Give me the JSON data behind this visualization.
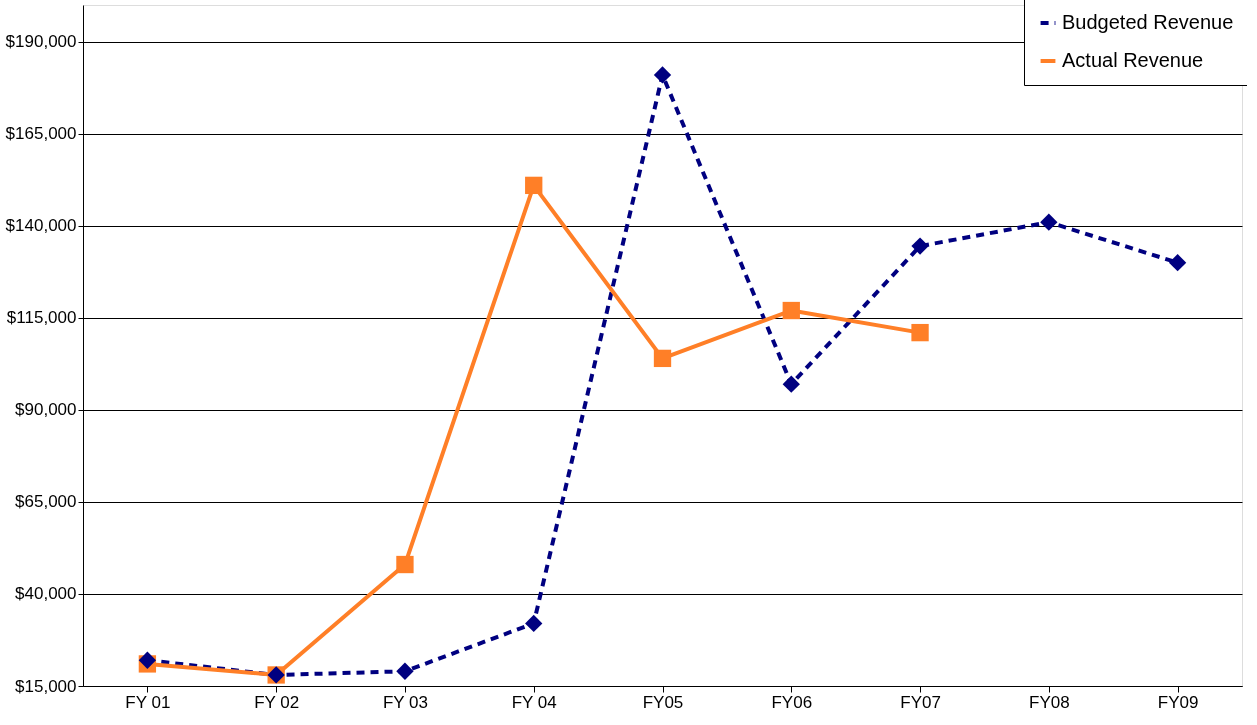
{
  "chart_data": {
    "type": "line",
    "categories": [
      "FY 01",
      "FY 02",
      "FY 03",
      "FY 04",
      "FY05",
      "FY06",
      "FY07",
      "FY08",
      "FY09"
    ],
    "series": [
      {
        "name": "Budgeted Revenue",
        "color": "#000080",
        "marker": "diamond",
        "line_style": "dashed",
        "values": [
          22000,
          18000,
          19000,
          32000,
          181000,
          97000,
          134500,
          141000,
          130000
        ]
      },
      {
        "name": "Actual Revenue",
        "color": "#ff7f27",
        "marker": "square",
        "line_style": "solid",
        "values": [
          21000,
          18000,
          48000,
          151000,
          104000,
          117000,
          111000,
          null,
          null
        ]
      }
    ],
    "ylim": [
      15000,
      200000
    ],
    "yticks": [
      {
        "value": 15000,
        "label": "$15,000"
      },
      {
        "value": 40000,
        "label": "$40,000"
      },
      {
        "value": 65000,
        "label": "$65,000"
      },
      {
        "value": 90000,
        "label": "$90,000"
      },
      {
        "value": 115000,
        "label": "$115,000"
      },
      {
        "value": 140000,
        "label": "$140,000"
      },
      {
        "value": 165000,
        "label": "$165,000"
      },
      {
        "value": 190000,
        "label": "$190,000"
      }
    ],
    "grid": "y",
    "legend": "top right"
  }
}
